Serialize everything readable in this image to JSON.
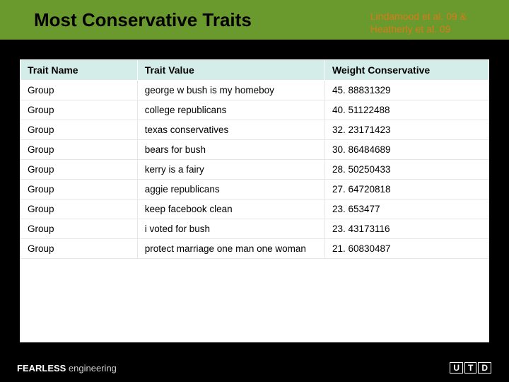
{
  "title": "Most Conservative Traits",
  "citation_line1": "Lindamood et al. 09 &",
  "citation_line2": "Heatherly et al. 09",
  "table": {
    "columns": [
      "Trait Name",
      "Trait Value",
      "Weight Conservative"
    ],
    "rows": [
      [
        "Group",
        "george w bush is my homeboy",
        "45. 88831329"
      ],
      [
        "Group",
        "college republicans",
        "40. 51122488"
      ],
      [
        "Group",
        "texas conservatives",
        "32. 23171423"
      ],
      [
        "Group",
        "bears for bush",
        "30. 86484689"
      ],
      [
        "Group",
        "kerry is a fairy",
        "28. 50250433"
      ],
      [
        "Group",
        "aggie republicans",
        "27. 64720818"
      ],
      [
        "Group",
        "keep facebook clean",
        "23. 653477"
      ],
      [
        "Group",
        "i voted for bush",
        "23. 43173116"
      ],
      [
        "Group",
        "protect marriage one man one woman",
        "21. 60830487"
      ]
    ]
  },
  "footer": {
    "bold": "FEARLESS",
    "light": " engineering",
    "logo_letters": [
      "U",
      "T",
      "D"
    ]
  },
  "colors": {
    "title_bar_bg": "#6a9a2d",
    "citation_color": "#d97a1a",
    "header_row_bg": "#d4ede8",
    "page_bg": "#000000",
    "content_bg": "#ffffff"
  }
}
